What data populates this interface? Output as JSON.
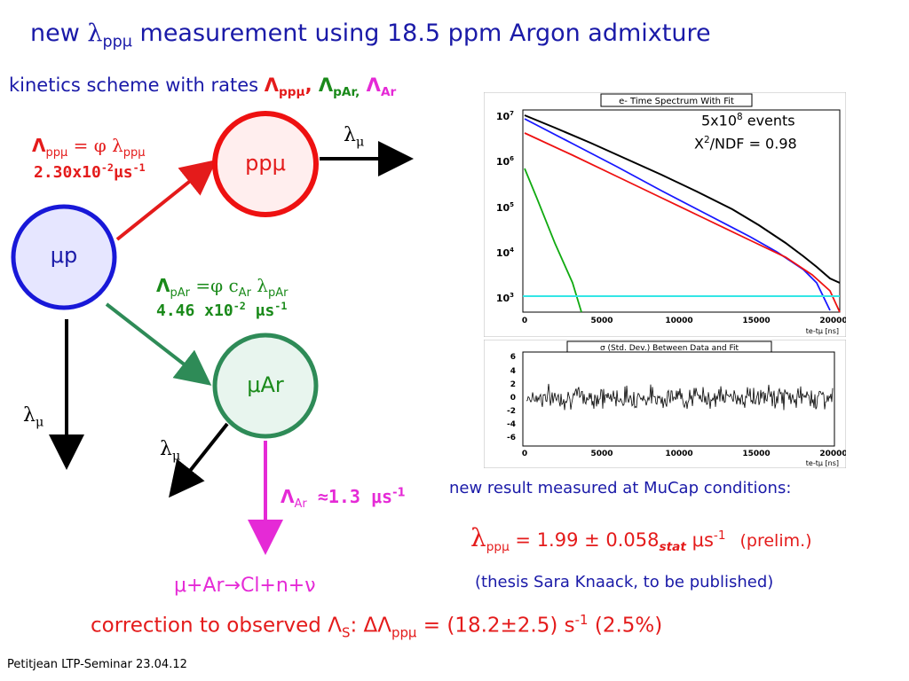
{
  "title": {
    "pre": "new ",
    "sym": "λ",
    "sub": "ppμ",
    "post": " measurement using 18.5 ppm Argon admixture"
  },
  "subtitle": {
    "pre": "kinetics scheme with rates ",
    "r1": "Λ",
    "r1sub": "ppμ",
    "sep1": ",",
    "r2": " Λ",
    "r2sub": "pAr,",
    "r3": " Λ",
    "r3sub": "Ar"
  },
  "nodes": {
    "mup": "μp",
    "ppmu": "ppμ",
    "muar": "μAr"
  },
  "rates": {
    "ppmu_line1_a": "Λ",
    "ppmu_line1_sub": "ppμ",
    "ppmu_line1_b": " = φ λ",
    "ppmu_line1_sub2": "ppμ",
    "ppmu_line2_a": "2.30x10",
    "ppmu_line2_sup": "-2",
    "ppmu_line2_b": "μs",
    "ppmu_line2_sup2": "-1",
    "par_line1_a": "Λ",
    "par_line1_sub": "pAr",
    "par_line1_b": " =φ c",
    "par_line1_sub2": "Ar",
    "par_line1_c": " λ",
    "par_line1_sub3": "pAr",
    "par_line2_a": "4.46 x10",
    "par_line2_sup": "-2",
    "par_line2_b": " μs",
    "par_line2_sup2": "-1",
    "ar_a": "Λ",
    "ar_sub": "Ar",
    "ar_b": " ≈1.3 μs",
    "ar_sup": "-1",
    "lambda_mu": "λ",
    "lambda_mu_sub": "μ",
    "capture": "μ+Ar→Cl+n+ν"
  },
  "plot_top": {
    "title": "e- Time Spectrum With Fit",
    "annot1": "5x10",
    "annot1_sup": "8",
    "annot1_post": " events",
    "annot2": "Χ",
    "annot2_sup": "2",
    "annot2_post": "/NDF = 0.98",
    "yticks": [
      "10",
      "10",
      "10",
      "10",
      "10"
    ],
    "yticks_sup": [
      "7",
      "6",
      "5",
      "4",
      "3"
    ],
    "xticks": [
      "0",
      "5000",
      "10000",
      "15000",
      "20000"
    ],
    "xlabel": "te-tμ [ns]"
  },
  "plot_bottom": {
    "title": "σ (Std. Dev.) Between Data and Fit",
    "yticks": [
      "6",
      "4",
      "2",
      "0",
      "-2",
      "-4",
      "-6"
    ],
    "xticks": [
      "0",
      "5000",
      "10000",
      "15000",
      "20000"
    ],
    "xlabel": "te-tμ [ns]"
  },
  "result": {
    "heading": "new result measured at MuCap conditions:",
    "sym": "λ",
    "sub": "ppμ",
    "value": " = 1.99 ± 0.058",
    "stat": "stat",
    "unit": " μs",
    "unit_sup": "-1",
    "prelim": "(prelim.)",
    "thesis": "(thesis Sara Knaack, to be published)"
  },
  "correction": {
    "pre": "correction to observed Λ",
    "sub": "S",
    "mid": ":   ΔΛ",
    "sub2": "ppμ",
    "post": " = (18.2±2.5) s",
    "sup": "-1",
    "end": "  (2.5%)"
  },
  "footer": "Petitjean LTP-Seminar 23.04.12",
  "colors": {
    "title_blue": "#1a1aa8",
    "red": "#e41b1b",
    "green": "#1a8a1a",
    "magenta": "#e52ad6",
    "node_blue": "#1818d8",
    "node_blue_fill": "#e6e6ff",
    "node_red_fill": "#ffeeee",
    "node_green_fill": "#e8f5ee"
  }
}
